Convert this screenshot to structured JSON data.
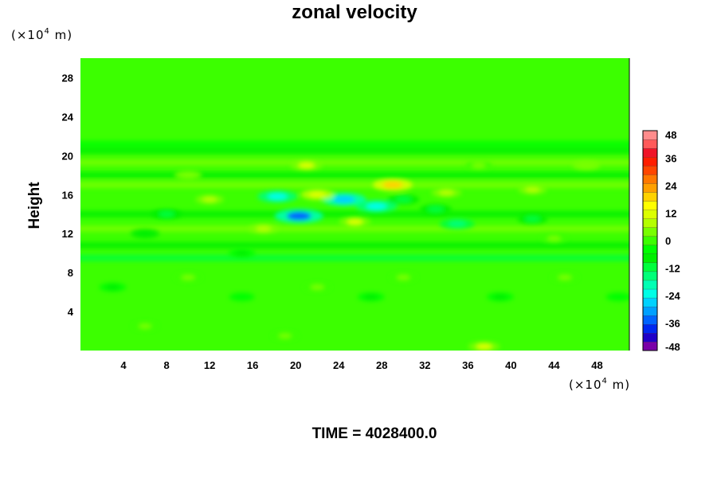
{
  "chart_data": {
    "type": "heatmap",
    "title": "zonal velocity",
    "ylabel": "Height",
    "y_unit": {
      "prefix": "(×10",
      "exponent": "4",
      "suffix": " m)"
    },
    "x_unit": {
      "prefix": "(×10",
      "exponent": "4",
      "suffix": " m)"
    },
    "xlim": [
      0,
      51
    ],
    "ylim": [
      0,
      30
    ],
    "x_ticks": [
      4,
      8,
      12,
      16,
      20,
      24,
      28,
      32,
      36,
      40,
      44,
      48
    ],
    "y_ticks": [
      4,
      8,
      12,
      16,
      20,
      24,
      28
    ],
    "colorbar": {
      "range": [
        -48,
        48
      ],
      "step": 4,
      "tick_labels": [
        "48",
        "36",
        "24",
        "12",
        "0",
        "-12",
        "-24",
        "-36",
        "-48"
      ],
      "colors": [
        "#7a00a8",
        "#2000c8",
        "#0028f0",
        "#0064ff",
        "#00a0ff",
        "#00d2ff",
        "#00ffe6",
        "#00ffb4",
        "#00ff78",
        "#00ff3c",
        "#00f000",
        "#00ff00",
        "#3cff00",
        "#78ff00",
        "#b4ff00",
        "#dcff00",
        "#ffff00",
        "#ffd200",
        "#ffa000",
        "#ff7800",
        "#ff4600",
        "#ff1e00",
        "#f01428",
        "#ff5a5a",
        "#ff8c8c"
      ]
    },
    "features": [
      {
        "x": 37.5,
        "y": 0.4,
        "value": 12
      },
      {
        "x": 10,
        "y": 7.5,
        "value": 6
      },
      {
        "x": 22,
        "y": 6.5,
        "value": 6
      },
      {
        "x": 30,
        "y": 7.5,
        "value": 6
      },
      {
        "x": 45,
        "y": 7.5,
        "value": 6
      },
      {
        "x": 6,
        "y": 2.5,
        "value": 4
      },
      {
        "x": 19,
        "y": 1.5,
        "value": 4
      },
      {
        "x": 3,
        "y": 6.5,
        "value": -6
      },
      {
        "x": 15,
        "y": 5.5,
        "value": -4
      },
      {
        "x": 27,
        "y": 5.5,
        "value": -6
      },
      {
        "x": 39,
        "y": 5.5,
        "value": -6
      },
      {
        "x": 50,
        "y": 5.5,
        "value": -4
      },
      {
        "x": 20.3,
        "y": 13.8,
        "value": -33
      },
      {
        "x": 24.5,
        "y": 15.5,
        "value": -27
      },
      {
        "x": 27.5,
        "y": 14.8,
        "value": -24
      },
      {
        "x": 18.3,
        "y": 15.8,
        "value": -22
      },
      {
        "x": 35,
        "y": 13,
        "value": -16
      },
      {
        "x": 33,
        "y": 14.5,
        "value": -12
      },
      {
        "x": 30,
        "y": 15.5,
        "value": -12
      },
      {
        "x": 42,
        "y": 13.5,
        "value": -10
      },
      {
        "x": 8,
        "y": 14,
        "value": -10
      },
      {
        "x": 29,
        "y": 17,
        "value": 22
      },
      {
        "x": 21,
        "y": 19,
        "value": 12
      },
      {
        "x": 22,
        "y": 16,
        "value": 14
      },
      {
        "x": 25.5,
        "y": 13.2,
        "value": 12
      },
      {
        "x": 34,
        "y": 16.2,
        "value": 10
      },
      {
        "x": 17,
        "y": 12.5,
        "value": 10
      },
      {
        "x": 12,
        "y": 15.5,
        "value": 8
      },
      {
        "x": 42,
        "y": 16.5,
        "value": 8
      },
      {
        "x": 47,
        "y": 19,
        "value": 7
      },
      {
        "x": 10,
        "y": 18,
        "value": 7
      },
      {
        "x": 37,
        "y": 19,
        "value": 6
      },
      {
        "x": 44,
        "y": 11.5,
        "value": 6
      },
      {
        "x": 6,
        "y": 12,
        "value": -8
      },
      {
        "x": 15,
        "y": 10,
        "value": -6
      }
    ],
    "bands": [
      {
        "y": 9.5,
        "value": -10
      },
      {
        "y": 10.8,
        "value": -6
      },
      {
        "y": 20.5,
        "value": -5
      },
      {
        "y": 19.3,
        "value": 4
      },
      {
        "y": 18,
        "value": -6
      },
      {
        "y": 17,
        "value": 5
      },
      {
        "y": 14,
        "value": -5
      },
      {
        "y": 12.5,
        "value": 4
      },
      {
        "y": 21.2,
        "value": -3
      }
    ]
  },
  "footer": {
    "time_label": "TIME = 4028400.0"
  }
}
